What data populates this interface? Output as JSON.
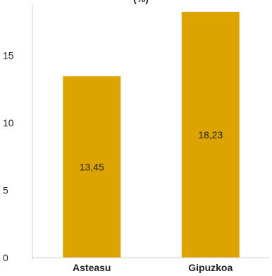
{
  "chart_data": {
    "type": "bar",
    "title": "(%)",
    "categories": [
      "Asteasu",
      "Gipuzkoa"
    ],
    "values": [
      13.45,
      18.23
    ],
    "value_labels": [
      "13,45",
      "18,23"
    ],
    "yticks": [
      "0",
      "5",
      "10",
      "15"
    ],
    "ylim": [
      0,
      18.8
    ],
    "xlabel": "",
    "ylabel": "",
    "grid": false,
    "colors": {
      "bar": "#DDA400",
      "axis": "#cccccc"
    }
  }
}
